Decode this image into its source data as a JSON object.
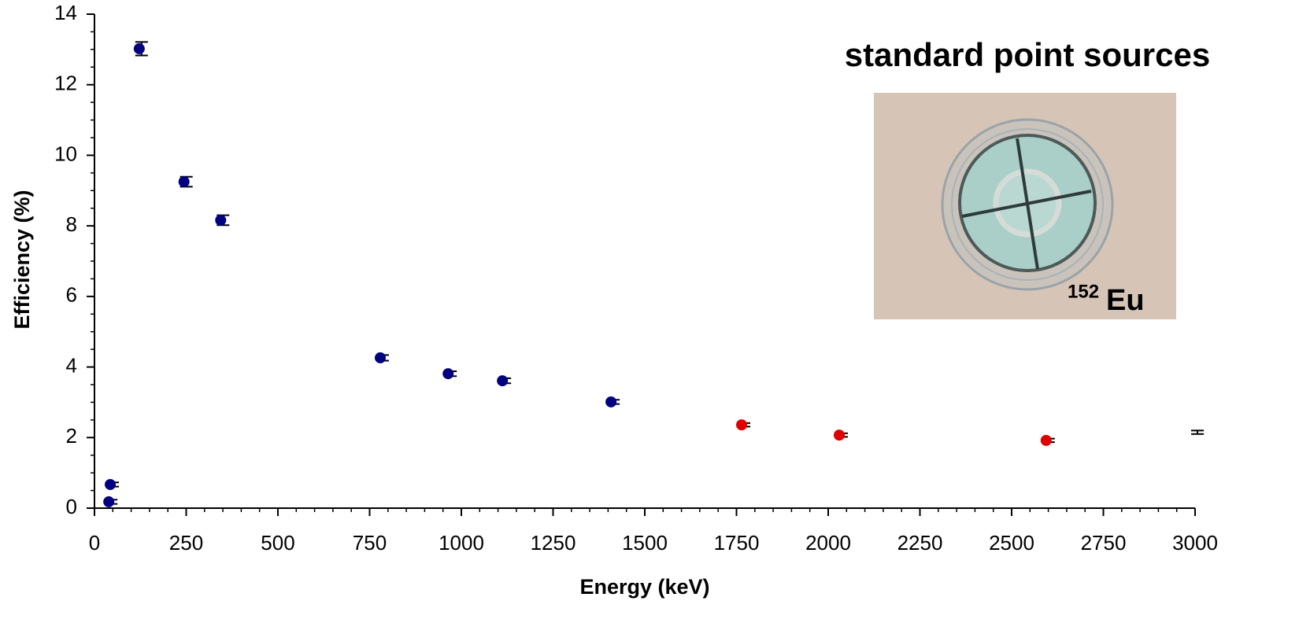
{
  "chart_data": {
    "type": "scatter",
    "annotation": "standard point sources",
    "inset_label": {
      "sup": "152",
      "text": "Eu"
    },
    "x_label": "Energy (keV)",
    "y_label": "Efficiency (%)",
    "xlim": [
      0,
      3000
    ],
    "ylim": [
      0,
      14
    ],
    "xticks": [
      0,
      250,
      500,
      750,
      1000,
      1250,
      1500,
      1750,
      2000,
      2250,
      2500,
      2750,
      3000
    ],
    "yticks": [
      0,
      2,
      4,
      6,
      8,
      10,
      12,
      14
    ],
    "x_minor_step": 50,
    "y_minor_step": 0.5,
    "series": [
      {
        "color": "#000080",
        "marker": true,
        "x": [
          39,
          43,
          122,
          244,
          344,
          779,
          964,
          1112,
          1408
        ],
        "values": [
          0.18,
          0.67,
          13.02,
          9.25,
          8.16,
          4.26,
          3.81,
          3.61,
          3.01
        ],
        "errors": [
          0.06,
          0.06,
          0.19,
          0.14,
          0.14,
          0.08,
          0.07,
          0.07,
          0.06
        ]
      },
      {
        "color": "#e00000",
        "marker": true,
        "x": [
          1764,
          2030,
          2594
        ],
        "values": [
          2.36,
          2.07,
          1.92
        ],
        "errors": [
          0.05,
          0.05,
          0.05
        ]
      },
      {
        "color": "#000000",
        "marker": false,
        "x": [
          3000
        ],
        "values": [
          2.15
        ],
        "errors": [
          0.05
        ]
      }
    ]
  }
}
